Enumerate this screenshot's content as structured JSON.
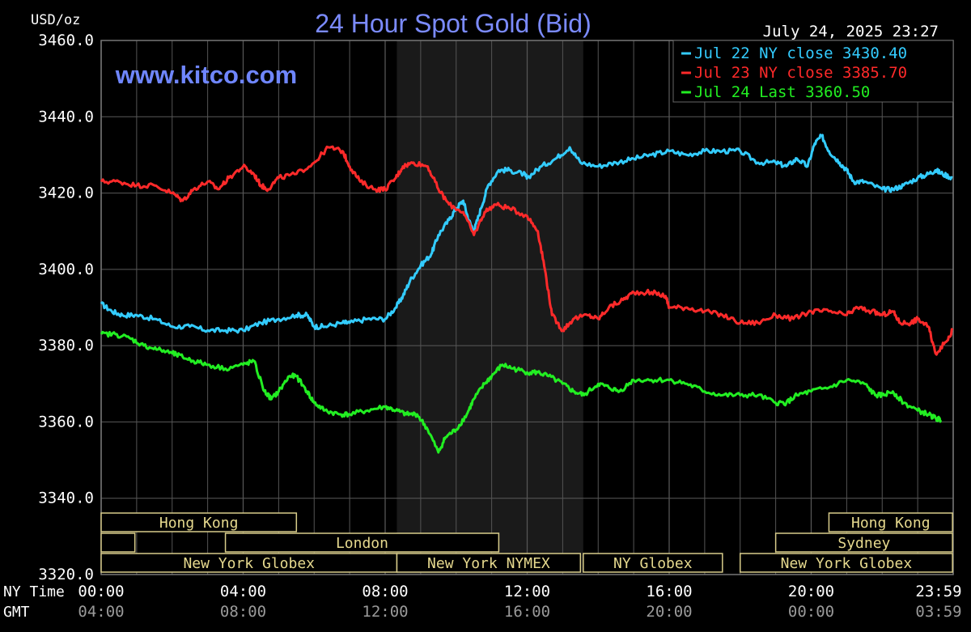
{
  "chart_data": {
    "type": "line",
    "title": "24 Hour Spot Gold (Bid)",
    "website": "www.kitco.com",
    "timestamp": "July 24, 2025 23:27",
    "ylabel": "USD/oz",
    "ylim": [
      3320,
      3460
    ],
    "y_ticks": [
      "3460.0",
      "3440.0",
      "3420.0",
      "3400.0",
      "3380.0",
      "3360.0",
      "3340.0",
      "3320.0"
    ],
    "y_tick_values": [
      3460,
      3440,
      3420,
      3400,
      3380,
      3360,
      3340,
      3320
    ],
    "xlim": [
      0,
      24
    ],
    "grid": true,
    "legend_placement": "top-right",
    "time_rows": [
      {
        "label": "NY Time",
        "ticks": [
          "00:00",
          "04:00",
          "08:00",
          "12:00",
          "16:00",
          "20:00",
          "23:59"
        ],
        "hours": [
          0,
          4,
          8,
          12,
          16,
          20,
          23.983
        ]
      },
      {
        "label": "GMT",
        "ticks": [
          "04:00",
          "08:00",
          "12:00",
          "16:00",
          "20:00",
          "00:00",
          "03:59"
        ],
        "hours": [
          0,
          4,
          8,
          12,
          16,
          20,
          23.983
        ]
      }
    ],
    "shaded_session_hours": [
      8.33,
      13.58
    ],
    "markets": [
      {
        "name": "Hong Kong",
        "start": 0,
        "end": 5.5,
        "row": 0
      },
      {
        "name": "Hong Kong",
        "start": 20.5,
        "end": 23.98,
        "row": 0
      },
      {
        "name": "",
        "start": 0,
        "end": 0.95,
        "row": 1
      },
      {
        "name": "London",
        "start": 3.5,
        "end": 11.2,
        "row": 1
      },
      {
        "name": "Sydney",
        "start": 19,
        "end": 23.98,
        "row": 1
      },
      {
        "name": "New York Globex",
        "start": 0,
        "end": 8.33,
        "row": 2
      },
      {
        "name": "New York NYMEX",
        "start": 8.33,
        "end": 13.5,
        "row": 2
      },
      {
        "name": "NY Globex",
        "start": 13.58,
        "end": 17.5,
        "row": 2
      },
      {
        "name": "New York Globex",
        "start": 18,
        "end": 23.98,
        "row": 2
      }
    ],
    "series": [
      {
        "name": "Jul 22 NY close 3430.40",
        "color": "#33ccff",
        "points": [
          [
            0,
            3391
          ],
          [
            0.3,
            3389
          ],
          [
            0.6,
            3388
          ],
          [
            1,
            3388
          ],
          [
            1.5,
            3387
          ],
          [
            2,
            3385
          ],
          [
            2.5,
            3385
          ],
          [
            3,
            3384
          ],
          [
            3.5,
            3384
          ],
          [
            4,
            3384
          ],
          [
            4.5,
            3386
          ],
          [
            5,
            3387
          ],
          [
            5.5,
            3388
          ],
          [
            5.8,
            3388
          ],
          [
            6,
            3385
          ],
          [
            6.3,
            3385
          ],
          [
            6.8,
            3386
          ],
          [
            7,
            3386
          ],
          [
            7.5,
            3387
          ],
          [
            8,
            3387
          ],
          [
            8.3,
            3390
          ],
          [
            8.5,
            3393
          ],
          [
            8.7,
            3397
          ],
          [
            9,
            3401
          ],
          [
            9.3,
            3404
          ],
          [
            9.5,
            3409
          ],
          [
            9.8,
            3413
          ],
          [
            10,
            3416
          ],
          [
            10.2,
            3418
          ],
          [
            10.35,
            3413
          ],
          [
            10.5,
            3410
          ],
          [
            10.7,
            3416
          ],
          [
            10.9,
            3422
          ],
          [
            11.2,
            3426
          ],
          [
            11.5,
            3426
          ],
          [
            11.9,
            3425
          ],
          [
            12,
            3424
          ],
          [
            12.4,
            3427
          ],
          [
            12.8,
            3429
          ],
          [
            13.2,
            3432
          ],
          [
            13.5,
            3428
          ],
          [
            14,
            3427
          ],
          [
            14.5,
            3428
          ],
          [
            15,
            3429
          ],
          [
            15.5,
            3430
          ],
          [
            16,
            3431
          ],
          [
            16.5,
            3430
          ],
          [
            17,
            3431
          ],
          [
            17.5,
            3431
          ],
          [
            18,
            3431
          ],
          [
            18.5,
            3428
          ],
          [
            19,
            3428
          ],
          [
            19.3,
            3427
          ],
          [
            19.6,
            3429
          ],
          [
            19.9,
            3427
          ],
          [
            20.1,
            3433
          ],
          [
            20.3,
            3435
          ],
          [
            20.5,
            3431
          ],
          [
            20.8,
            3428
          ],
          [
            21,
            3426
          ],
          [
            21.2,
            3423
          ],
          [
            21.5,
            3423
          ],
          [
            22,
            3421
          ],
          [
            22.3,
            3421
          ],
          [
            22.6,
            3422
          ],
          [
            23,
            3424
          ],
          [
            23.3,
            3425
          ],
          [
            23.5,
            3426
          ],
          [
            23.7,
            3425
          ],
          [
            23.98,
            3424
          ]
        ]
      },
      {
        "name": "Jul 23 NY close 3385.70",
        "color": "#ff2a2a",
        "points": [
          [
            0,
            3423
          ],
          [
            0.5,
            3423
          ],
          [
            1,
            3422
          ],
          [
            1.5,
            3422
          ],
          [
            2,
            3420
          ],
          [
            2.3,
            3418
          ],
          [
            2.6,
            3421
          ],
          [
            3,
            3423
          ],
          [
            3.3,
            3421
          ],
          [
            3.6,
            3424
          ],
          [
            4,
            3427
          ],
          [
            4.3,
            3425
          ],
          [
            4.5,
            3422
          ],
          [
            4.7,
            3421
          ],
          [
            5,
            3424
          ],
          [
            5.5,
            3425
          ],
          [
            6,
            3428
          ],
          [
            6.4,
            3432
          ],
          [
            6.8,
            3431
          ],
          [
            7,
            3427
          ],
          [
            7.3,
            3423
          ],
          [
            7.7,
            3421
          ],
          [
            8,
            3421
          ],
          [
            8.3,
            3424
          ],
          [
            8.5,
            3427
          ],
          [
            8.8,
            3428
          ],
          [
            9.2,
            3427
          ],
          [
            9.5,
            3421
          ],
          [
            9.8,
            3417
          ],
          [
            10.2,
            3415
          ],
          [
            10.5,
            3409
          ],
          [
            10.8,
            3415
          ],
          [
            11.1,
            3417
          ],
          [
            11.5,
            3416
          ],
          [
            12,
            3414
          ],
          [
            12.3,
            3410
          ],
          [
            12.5,
            3400
          ],
          [
            12.7,
            3388
          ],
          [
            13,
            3384
          ],
          [
            13.3,
            3387
          ],
          [
            13.7,
            3388
          ],
          [
            14,
            3387
          ],
          [
            14.3,
            3390
          ],
          [
            14.7,
            3392
          ],
          [
            15,
            3394
          ],
          [
            15.5,
            3394
          ],
          [
            15.9,
            3393
          ],
          [
            16,
            3390
          ],
          [
            16.5,
            3390
          ],
          [
            17,
            3389
          ],
          [
            17.5,
            3388
          ],
          [
            18,
            3386
          ],
          [
            18.5,
            3386
          ],
          [
            19,
            3388
          ],
          [
            19.5,
            3387
          ],
          [
            20,
            3389
          ],
          [
            20.5,
            3389
          ],
          [
            21,
            3388
          ],
          [
            21.3,
            3390
          ],
          [
            21.7,
            3389
          ],
          [
            22,
            3388
          ],
          [
            22.3,
            3389
          ],
          [
            22.5,
            3386
          ],
          [
            22.8,
            3386
          ],
          [
            23,
            3387
          ],
          [
            23.3,
            3385
          ],
          [
            23.5,
            3378
          ],
          [
            23.8,
            3381
          ],
          [
            23.98,
            3384
          ]
        ]
      },
      {
        "name": "Jul 24 Last 3360.50",
        "color": "#22ee22",
        "points": [
          [
            0,
            3383
          ],
          [
            0.4,
            3383
          ],
          [
            0.8,
            3382
          ],
          [
            1.2,
            3380
          ],
          [
            1.6,
            3379
          ],
          [
            2,
            3378
          ],
          [
            2.3,
            3377
          ],
          [
            2.6,
            3376
          ],
          [
            3,
            3375
          ],
          [
            3.5,
            3374
          ],
          [
            4,
            3375
          ],
          [
            4.3,
            3376
          ],
          [
            4.6,
            3368
          ],
          [
            4.8,
            3366
          ],
          [
            5,
            3368
          ],
          [
            5.3,
            3372
          ],
          [
            5.5,
            3372
          ],
          [
            5.8,
            3368
          ],
          [
            6,
            3365
          ],
          [
            6.3,
            3363
          ],
          [
            6.7,
            3362
          ],
          [
            7,
            3362
          ],
          [
            7.5,
            3363
          ],
          [
            8,
            3364
          ],
          [
            8.3,
            3363
          ],
          [
            8.6,
            3362
          ],
          [
            8.9,
            3362
          ],
          [
            9.2,
            3358
          ],
          [
            9.5,
            3352
          ],
          [
            9.7,
            3356
          ],
          [
            10,
            3358
          ],
          [
            10.3,
            3362
          ],
          [
            10.5,
            3366
          ],
          [
            10.8,
            3370
          ],
          [
            11,
            3372
          ],
          [
            11.3,
            3375
          ],
          [
            11.6,
            3374
          ],
          [
            12,
            3373
          ],
          [
            12.3,
            3373
          ],
          [
            12.6,
            3372
          ],
          [
            13,
            3370
          ],
          [
            13.3,
            3368
          ],
          [
            13.6,
            3367
          ],
          [
            14,
            3370
          ],
          [
            14.3,
            3369
          ],
          [
            14.6,
            3368
          ],
          [
            15,
            3371
          ],
          [
            15.5,
            3371
          ],
          [
            16,
            3371
          ],
          [
            16.5,
            3370
          ],
          [
            17,
            3368
          ],
          [
            17.5,
            3367
          ],
          [
            18,
            3367
          ],
          [
            18.5,
            3367
          ],
          [
            19,
            3365
          ],
          [
            19.3,
            3365
          ],
          [
            19.6,
            3367
          ],
          [
            20,
            3368
          ],
          [
            20.5,
            3369
          ],
          [
            21,
            3371
          ],
          [
            21.5,
            3370
          ],
          [
            21.8,
            3367
          ],
          [
            22,
            3367
          ],
          [
            22.3,
            3368
          ],
          [
            22.6,
            3365
          ],
          [
            23,
            3363
          ],
          [
            23.3,
            3362
          ],
          [
            23.5,
            3361
          ],
          [
            23.65,
            3360.5
          ]
        ]
      }
    ]
  }
}
